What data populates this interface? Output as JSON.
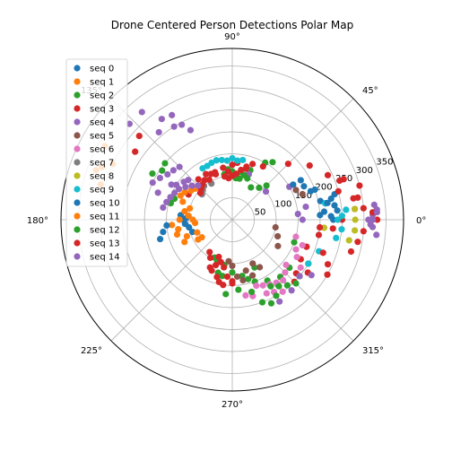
{
  "chart_data": {
    "type": "scatter",
    "projection": "polar",
    "title": "Drone Centered Person Detections Polar Map",
    "theta_tick_labels": [
      "0°",
      "45°",
      "90°",
      "135°",
      "180°",
      "225°",
      "270°",
      "315°"
    ],
    "theta_ticks_deg": [
      0,
      45,
      90,
      135,
      180,
      225,
      270,
      315
    ],
    "r_tick_labels": [
      "50",
      "100",
      "150",
      "200",
      "250",
      "300",
      "350"
    ],
    "r_ticks": [
      50,
      100,
      150,
      200,
      250,
      300,
      350
    ],
    "rlim": [
      0,
      390
    ],
    "grid": true,
    "legend": {
      "placement": "upper-left"
    },
    "series": [
      {
        "name": "seq 0",
        "color": "#1f77b4",
        "points": [
          [
            197,
            95
          ],
          [
            190,
            100
          ],
          [
            185,
            108
          ],
          [
            180,
            112
          ],
          [
            178,
            105
          ],
          [
            175,
            118
          ],
          [
            0,
            230
          ],
          [
            2,
            225
          ],
          [
            5,
            240
          ],
          [
            8,
            235
          ],
          [
            10,
            215
          ],
          [
            12,
            205
          ],
          [
            20,
            190
          ],
          [
            30,
            180
          ]
        ]
      },
      {
        "name": "seq 1",
        "color": "#ff7f0e",
        "points": [
          [
            155,
            300
          ],
          [
            158,
            320
          ],
          [
            160,
            330
          ],
          [
            150,
            335
          ],
          [
            165,
            310
          ],
          [
            200,
            110
          ],
          [
            205,
            120
          ],
          [
            195,
            130
          ],
          [
            190,
            125
          ],
          [
            185,
            138
          ],
          [
            180,
            120
          ],
          [
            210,
            90
          ]
        ]
      },
      {
        "name": "seq 2",
        "color": "#2ca02c",
        "points": [
          [
            80,
            95
          ],
          [
            85,
            100
          ],
          [
            90,
            110
          ],
          [
            95,
            115
          ],
          [
            100,
            105
          ],
          [
            70,
            120
          ],
          [
            60,
            150
          ],
          [
            55,
            160
          ],
          [
            280,
            130
          ],
          [
            285,
            140
          ],
          [
            290,
            150
          ],
          [
            300,
            160
          ],
          [
            305,
            180
          ],
          [
            295,
            120
          ],
          [
            270,
            120
          ],
          [
            260,
            105
          ],
          [
            250,
            100
          ],
          [
            245,
            95
          ],
          [
            320,
            170
          ],
          [
            310,
            170
          ],
          [
            160,
            140
          ],
          [
            165,
            145
          ],
          [
            330,
            200
          ],
          [
            340,
            150
          ]
        ]
      },
      {
        "name": "seq 3",
        "color": "#d62728",
        "points": [
          [
            110,
            110
          ],
          [
            115,
            115
          ],
          [
            120,
            120
          ],
          [
            100,
            120
          ],
          [
            95,
            110
          ],
          [
            90,
            125
          ],
          [
            250,
            90
          ],
          [
            255,
            100
          ],
          [
            260,
            110
          ],
          [
            270,
            140
          ],
          [
            315,
            200
          ],
          [
            320,
            190
          ],
          [
            325,
            210
          ],
          [
            330,
            180
          ],
          [
            340,
            180
          ],
          [
            350,
            200
          ],
          [
            355,
            230
          ],
          [
            0,
            250
          ],
          [
            5,
            280
          ],
          [
            10,
            290
          ],
          [
            15,
            300
          ],
          [
            20,
            270
          ],
          [
            35,
            215
          ],
          [
            45,
            180
          ],
          [
            60,
            140
          ],
          [
            75,
            120
          ],
          [
            85,
            130
          ],
          [
            130,
            120
          ],
          [
            140,
            120
          ],
          [
            150,
            115
          ]
        ]
      },
      {
        "name": "seq 4",
        "color": "#9467bd",
        "points": [
          [
            145,
            180
          ],
          [
            150,
            190
          ],
          [
            155,
            200
          ],
          [
            140,
            175
          ],
          [
            135,
            170
          ],
          [
            160,
            180
          ],
          [
            137,
            320
          ],
          [
            130,
            260
          ],
          [
            122,
            250
          ],
          [
            115,
            225
          ],
          [
            0,
            310
          ],
          [
            2,
            320
          ],
          [
            4,
            330
          ],
          [
            358,
            315
          ],
          [
            0,
            160
          ],
          [
            5,
            150
          ],
          [
            10,
            170
          ],
          [
            30,
            150
          ],
          [
            40,
            100
          ],
          [
            70,
            110
          ]
        ]
      },
      {
        "name": "seq 5",
        "color": "#8c564b",
        "points": [
          [
            275,
            130
          ],
          [
            280,
            140
          ],
          [
            285,
            120
          ],
          [
            290,
            135
          ],
          [
            295,
            110
          ],
          [
            300,
            125
          ],
          [
            270,
            105
          ],
          [
            265,
            95
          ],
          [
            330,
            120
          ],
          [
            340,
            110
          ],
          [
            350,
            100
          ],
          [
            20,
            170
          ],
          [
            25,
            160
          ]
        ]
      },
      {
        "name": "seq 6",
        "color": "#e377c2",
        "points": [
          [
            290,
            160
          ],
          [
            295,
            165
          ],
          [
            300,
            170
          ],
          [
            305,
            175
          ],
          [
            310,
            180
          ],
          [
            315,
            170
          ],
          [
            320,
            160
          ],
          [
            305,
            200
          ],
          [
            300,
            190
          ],
          [
            295,
            185
          ],
          [
            285,
            180
          ],
          [
            280,
            175
          ],
          [
            325,
            190
          ],
          [
            330,
            170
          ],
          [
            335,
            160
          ],
          [
            340,
            170
          ],
          [
            345,
            150
          ]
        ]
      },
      {
        "name": "seq 7",
        "color": "#7f7f7f",
        "points": [
          [
            130,
            100
          ],
          [
            135,
            95
          ],
          [
            140,
            90
          ],
          [
            120,
            95
          ]
        ]
      },
      {
        "name": "seq 8",
        "color": "#bcbd22",
        "points": [
          [
            355,
            280
          ],
          [
            0,
            280
          ],
          [
            5,
            280
          ],
          [
            355,
            210
          ],
          [
            350,
            270
          ]
        ]
      },
      {
        "name": "seq 9",
        "color": "#17becf",
        "points": [
          [
            95,
            135
          ],
          [
            100,
            138
          ],
          [
            105,
            140
          ],
          [
            110,
            138
          ],
          [
            115,
            135
          ],
          [
            85,
            135
          ],
          [
            90,
            140
          ],
          [
            80,
            138
          ],
          [
            120,
            135
          ],
          [
            0,
            240
          ],
          [
            2,
            250
          ],
          [
            5,
            260
          ],
          [
            355,
            250
          ],
          [
            350,
            240
          ],
          [
            10,
            215
          ],
          [
            340,
            210
          ],
          [
            330,
            200
          ]
        ]
      },
      {
        "name": "seq 10",
        "color": "#1f77b4",
        "points": [
          [
            10,
            220
          ],
          [
            12,
            230
          ],
          [
            14,
            240
          ],
          [
            20,
            200
          ],
          [
            25,
            180
          ],
          [
            30,
            160
          ],
          [
            5,
            210
          ],
          [
            3,
            200
          ],
          [
            190,
            160
          ],
          [
            195,
            170
          ],
          [
            185,
            150
          ]
        ]
      },
      {
        "name": "seq 11",
        "color": "#ff7f0e",
        "points": [
          [
            140,
            110
          ],
          [
            145,
            115
          ],
          [
            150,
            125
          ],
          [
            155,
            130
          ],
          [
            160,
            120
          ],
          [
            165,
            100
          ],
          [
            170,
            110
          ],
          [
            175,
            100
          ],
          [
            180,
            90
          ],
          [
            185,
            85
          ],
          [
            200,
            85
          ],
          [
            210,
            80
          ]
        ]
      },
      {
        "name": "seq 12",
        "color": "#2ca02c",
        "points": [
          [
            70,
            100
          ],
          [
            75,
            105
          ],
          [
            80,
            110
          ],
          [
            85,
            95
          ],
          [
            60,
            85
          ],
          [
            50,
            95
          ],
          [
            45,
            110
          ],
          [
            300,
            175
          ],
          [
            305,
            185
          ],
          [
            310,
            195
          ],
          [
            315,
            205
          ],
          [
            320,
            200
          ],
          [
            300,
            200
          ],
          [
            295,
            210
          ],
          [
            290,
            200
          ],
          [
            285,
            170
          ],
          [
            275,
            160
          ],
          [
            265,
            170
          ],
          [
            260,
            130
          ],
          [
            255,
            125
          ],
          [
            140,
            200
          ],
          [
            145,
            195
          ],
          [
            150,
            210
          ]
        ]
      },
      {
        "name": "seq 13",
        "color": "#d62728",
        "points": [
          [
            250,
            110
          ],
          [
            248,
            125
          ],
          [
            245,
            120
          ],
          [
            255,
            135
          ],
          [
            258,
            145
          ],
          [
            262,
            150
          ],
          [
            265,
            130
          ],
          [
            270,
            145
          ],
          [
            240,
            100
          ],
          [
            235,
            90
          ],
          [
            100,
            100
          ],
          [
            110,
            115
          ],
          [
            120,
            105
          ],
          [
            125,
            110
          ],
          [
            130,
            105
          ],
          [
            135,
            100
          ],
          [
            140,
            95
          ],
          [
            95,
            95
          ],
          [
            90,
            100
          ],
          [
            85,
            105
          ],
          [
            80,
            115
          ],
          [
            75,
            125
          ],
          [
            70,
            135
          ],
          [
            15,
            250
          ],
          [
            20,
            260
          ],
          [
            25,
            240
          ],
          [
            10,
            280
          ],
          [
            5,
            300
          ],
          [
            3,
            320
          ],
          [
            0,
            330
          ],
          [
            355,
            300
          ],
          [
            350,
            290
          ],
          [
            345,
            280
          ],
          [
            330,
            250
          ],
          [
            335,
            240
          ],
          [
            138,
            285
          ],
          [
            145,
            270
          ],
          [
            355,
            200
          ],
          [
            340,
            220
          ]
        ]
      },
      {
        "name": "seq 14",
        "color": "#9467bd",
        "points": [
          [
            135,
            110
          ],
          [
            140,
            120
          ],
          [
            145,
            130
          ],
          [
            150,
            140
          ],
          [
            155,
            145
          ],
          [
            160,
            150
          ],
          [
            165,
            155
          ],
          [
            170,
            160
          ],
          [
            150,
            160
          ],
          [
            148,
            150
          ],
          [
            142,
            140
          ],
          [
            138,
            135
          ],
          [
            130,
            320
          ],
          [
            125,
            280
          ],
          [
            120,
            275
          ],
          [
            118,
            245
          ],
          [
            0,
            320
          ],
          [
            3,
            330
          ],
          [
            6,
            325
          ],
          [
            357,
            320
          ],
          [
            354,
            330
          ],
          [
            320,
            200
          ],
          [
            325,
            220
          ],
          [
            310,
            210
          ],
          [
            300,
            215
          ]
        ]
      }
    ]
  }
}
